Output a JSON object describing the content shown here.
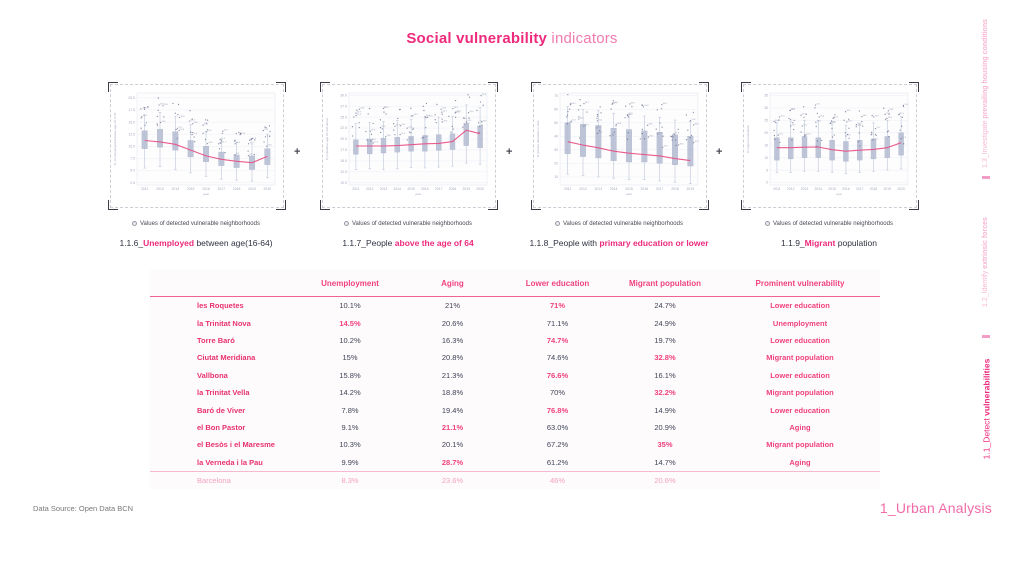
{
  "page": {
    "title_bold": "Social vulnerability",
    "title_light": " indicators",
    "footer_source": "Data Source: Open Data BCN",
    "footer_section": "1_Urban Analysis",
    "plus_separator": "+",
    "colors": {
      "accent": "#ee2a7c",
      "accent_light": "#f27bb0",
      "accent_faint": "#f7b6d2",
      "box_fill": "#b9c0d4",
      "trend_line": "#e85287",
      "value_text": "#3f4357"
    }
  },
  "sidebar": {
    "items": [
      {
        "segments": [
          {
            "t": "1.3_Investigate ",
            "h": false
          },
          {
            "t": "prevailing housing conditions",
            "h": true
          }
        ],
        "active": false
      },
      {
        "segments": [
          {
            "t": "1.2_Identify ",
            "h": false
          },
          {
            "t": "extrinsic forces",
            "h": true
          }
        ],
        "active": false
      },
      {
        "segments": [
          {
            "t": "1.1_Detect ",
            "h": false
          },
          {
            "t": "vulnerabilities",
            "h": true
          }
        ],
        "active": true
      }
    ]
  },
  "chart_data": [
    {
      "type": "boxplot",
      "legend": "Values of detected vulnerable neighborhoods",
      "caption": [
        {
          "t": "1.1.6_",
          "h": false
        },
        {
          "t": "Unemployed",
          "h": true
        },
        {
          "t": " between age(16-64)",
          "h": false
        }
      ],
      "ylabel": "% of unemployed between age 16 to 64",
      "xlabel": "year",
      "x": [
        "2012",
        "2013",
        "2014",
        "2015",
        "2016",
        "2017",
        "2018",
        "2019",
        "2020"
      ],
      "ylim": [
        2,
        21
      ],
      "yticks": [
        "2.5",
        "5.0",
        "7.5",
        "10.0",
        "12.5",
        "15.0",
        "17.5",
        "20.0"
      ],
      "boxes": [
        [
          5.5,
          9.5,
          13.2,
          16.5
        ],
        [
          5.8,
          9.8,
          13.5,
          17.0
        ],
        [
          5.2,
          9.2,
          13.0,
          16.2
        ],
        [
          4.5,
          7.8,
          11.2,
          14.5
        ],
        [
          3.8,
          6.8,
          10.0,
          13.0
        ],
        [
          3.2,
          6.0,
          8.8,
          11.5
        ],
        [
          3.0,
          5.6,
          8.2,
          10.8
        ],
        [
          2.8,
          5.2,
          8.0,
          10.5
        ],
        [
          3.5,
          6.2,
          9.5,
          12.5
        ]
      ],
      "trend": [
        11.2,
        10.9,
        10.4,
        9.2,
        8.0,
        7.3,
        6.9,
        6.6,
        7.9
      ]
    },
    {
      "type": "boxplot",
      "legend": "Values of detected vulnerable neighborhoods",
      "caption": [
        {
          "t": "1.1.7_People ",
          "h": false
        },
        {
          "t": "above the age of 64",
          "h": true
        }
      ],
      "ylabel": "% population age 64 and above",
      "xlabel": "year",
      "x": [
        "2011",
        "2012",
        "2013",
        "2014",
        "2015",
        "2016",
        "2017",
        "2018",
        "2019",
        "2020"
      ],
      "ylim": [
        9.5,
        30.5
      ],
      "yticks": [
        "10.0",
        "12.5",
        "15.0",
        "17.5",
        "20.0",
        "22.5",
        "25.0",
        "27.5",
        "30.0"
      ],
      "boxes": [
        [
          13.0,
          16.5,
          19.8,
          23.5
        ],
        [
          13.2,
          16.6,
          20.0,
          23.8
        ],
        [
          13.0,
          16.8,
          20.2,
          24.0
        ],
        [
          13.2,
          17.0,
          20.4,
          24.2
        ],
        [
          13.5,
          17.2,
          20.6,
          24.5
        ],
        [
          13.4,
          17.2,
          20.8,
          24.8
        ],
        [
          13.6,
          17.4,
          21.0,
          25.0
        ],
        [
          13.8,
          17.6,
          21.2,
          25.2
        ],
        [
          14.5,
          18.5,
          23.5,
          27.8
        ],
        [
          14.2,
          18.0,
          23.0,
          27.2
        ]
      ],
      "trend": [
        18.4,
        18.4,
        18.4,
        18.5,
        18.7,
        18.9,
        19.0,
        19.4,
        22.0,
        21.2
      ]
    },
    {
      "type": "boxplot",
      "legend": "Values of detected vulnerable neighborhoods",
      "caption": [
        {
          "t": "1.1.8_People with ",
          "h": false
        },
        {
          "t": "primary education or lower",
          "h": true
        }
      ],
      "ylabel": "% primary education or less",
      "xlabel": "year",
      "x": [
        "2011",
        "2012",
        "2013",
        "2014",
        "2015",
        "2016",
        "2017",
        "2018",
        "2019"
      ],
      "ylim": [
        4,
        72
      ],
      "yticks": [
        "10",
        "20",
        "30",
        "40",
        "50",
        "60",
        "70"
      ],
      "boxes": [
        [
          12,
          27,
          50,
          62
        ],
        [
          11,
          25,
          49,
          60
        ],
        [
          10,
          24,
          48,
          59
        ],
        [
          9,
          22,
          46,
          57
        ],
        [
          8,
          21,
          45,
          56
        ],
        [
          8,
          21,
          44,
          55
        ],
        [
          7,
          20,
          43,
          54
        ],
        [
          6,
          19,
          41,
          52
        ],
        [
          5,
          18,
          40,
          51
        ]
      ],
      "trend": [
        36,
        33.5,
        31.5,
        29,
        27.5,
        26.5,
        25.5,
        23.5,
        22
      ]
    },
    {
      "type": "boxplot",
      "legend": "Values of detected vulnerable neighborhoods",
      "caption": [
        {
          "t": "1.1.9_",
          "h": false
        },
        {
          "t": "Migrant",
          "h": true
        },
        {
          "t": " population",
          "h": false
        }
      ],
      "ylabel": "% migrant population",
      "xlabel": "year",
      "x": [
        "2011",
        "2012",
        "2013",
        "2014",
        "2015",
        "2016",
        "2017",
        "2018",
        "2019",
        "2020"
      ],
      "ylim": [
        -1,
        36
      ],
      "yticks": [
        "0",
        "5",
        "10",
        "15",
        "20",
        "25",
        "30",
        "35"
      ],
      "boxes": [
        [
          4,
          9,
          18,
          24
        ],
        [
          4,
          9.5,
          18,
          24.5
        ],
        [
          4.5,
          10,
          18.5,
          25
        ],
        [
          4.5,
          10,
          18,
          25
        ],
        [
          4,
          9,
          17,
          23.5
        ],
        [
          3.5,
          8.5,
          16.5,
          23
        ],
        [
          4,
          9,
          17,
          23.5
        ],
        [
          4.5,
          9.5,
          17.5,
          24
        ],
        [
          5,
          10,
          18.5,
          25
        ],
        [
          5.5,
          11,
          20,
          26.5
        ]
      ],
      "trend": [
        14,
        14,
        14.2,
        14.3,
        13.2,
        12.6,
        13,
        13.3,
        14,
        16
      ]
    }
  ],
  "table": {
    "columns": [
      "Unemployment",
      "Aging",
      "Lower education",
      "Migrant population",
      "Prominent vulnerability"
    ],
    "rows": [
      {
        "name": "les Roquetes",
        "values": [
          "10.1%",
          "21%",
          "71%",
          "24.7%"
        ],
        "highlight": 2,
        "vulnerability": "Lower education"
      },
      {
        "name": "la Trinitat Nova",
        "values": [
          "14.5%",
          "20.6%",
          "71.1%",
          "24.9%"
        ],
        "highlight": 0,
        "vulnerability": "Unemployment"
      },
      {
        "name": "Torre Baró",
        "values": [
          "10.2%",
          "16.3%",
          "74.7%",
          "19.7%"
        ],
        "highlight": 2,
        "vulnerability": "Lower education"
      },
      {
        "name": "Ciutat Meridiana",
        "values": [
          "15%",
          "20.8%",
          "74.6%",
          "32.8%"
        ],
        "highlight": 3,
        "vulnerability": "Migrant population"
      },
      {
        "name": "Vallbona",
        "values": [
          "15.8%",
          "21.3%",
          "76.6%",
          "16.1%"
        ],
        "highlight": 2,
        "vulnerability": "Lower education"
      },
      {
        "name": "la Trinitat Vella",
        "values": [
          "14.2%",
          "18.8%",
          "70%",
          "32.2%"
        ],
        "highlight": 3,
        "vulnerability": "Migrant population"
      },
      {
        "name": "Baró de Viver",
        "values": [
          "7.8%",
          "19.4%",
          "76.8%",
          "14.9%"
        ],
        "highlight": 2,
        "vulnerability": "Lower education"
      },
      {
        "name": "el Bon Pastor",
        "values": [
          "9.1%",
          "21.1%",
          "63.0%",
          "20.9%"
        ],
        "highlight": 1,
        "vulnerability": "Aging"
      },
      {
        "name": "el Besòs i el Maresme",
        "values": [
          "10.3%",
          "20.1%",
          "67.2%",
          "35%"
        ],
        "highlight": 3,
        "vulnerability": "Migrant population"
      },
      {
        "name": "la Verneda i la Pau",
        "values": [
          "9.9%",
          "28.7%",
          "61.2%",
          "14.7%"
        ],
        "highlight": 1,
        "vulnerability": "Aging"
      }
    ],
    "city_row": {
      "name": "Barcelona",
      "values": [
        "8.3%",
        "23.6%",
        "46%",
        "20.6%"
      ],
      "vulnerability": ""
    }
  }
}
